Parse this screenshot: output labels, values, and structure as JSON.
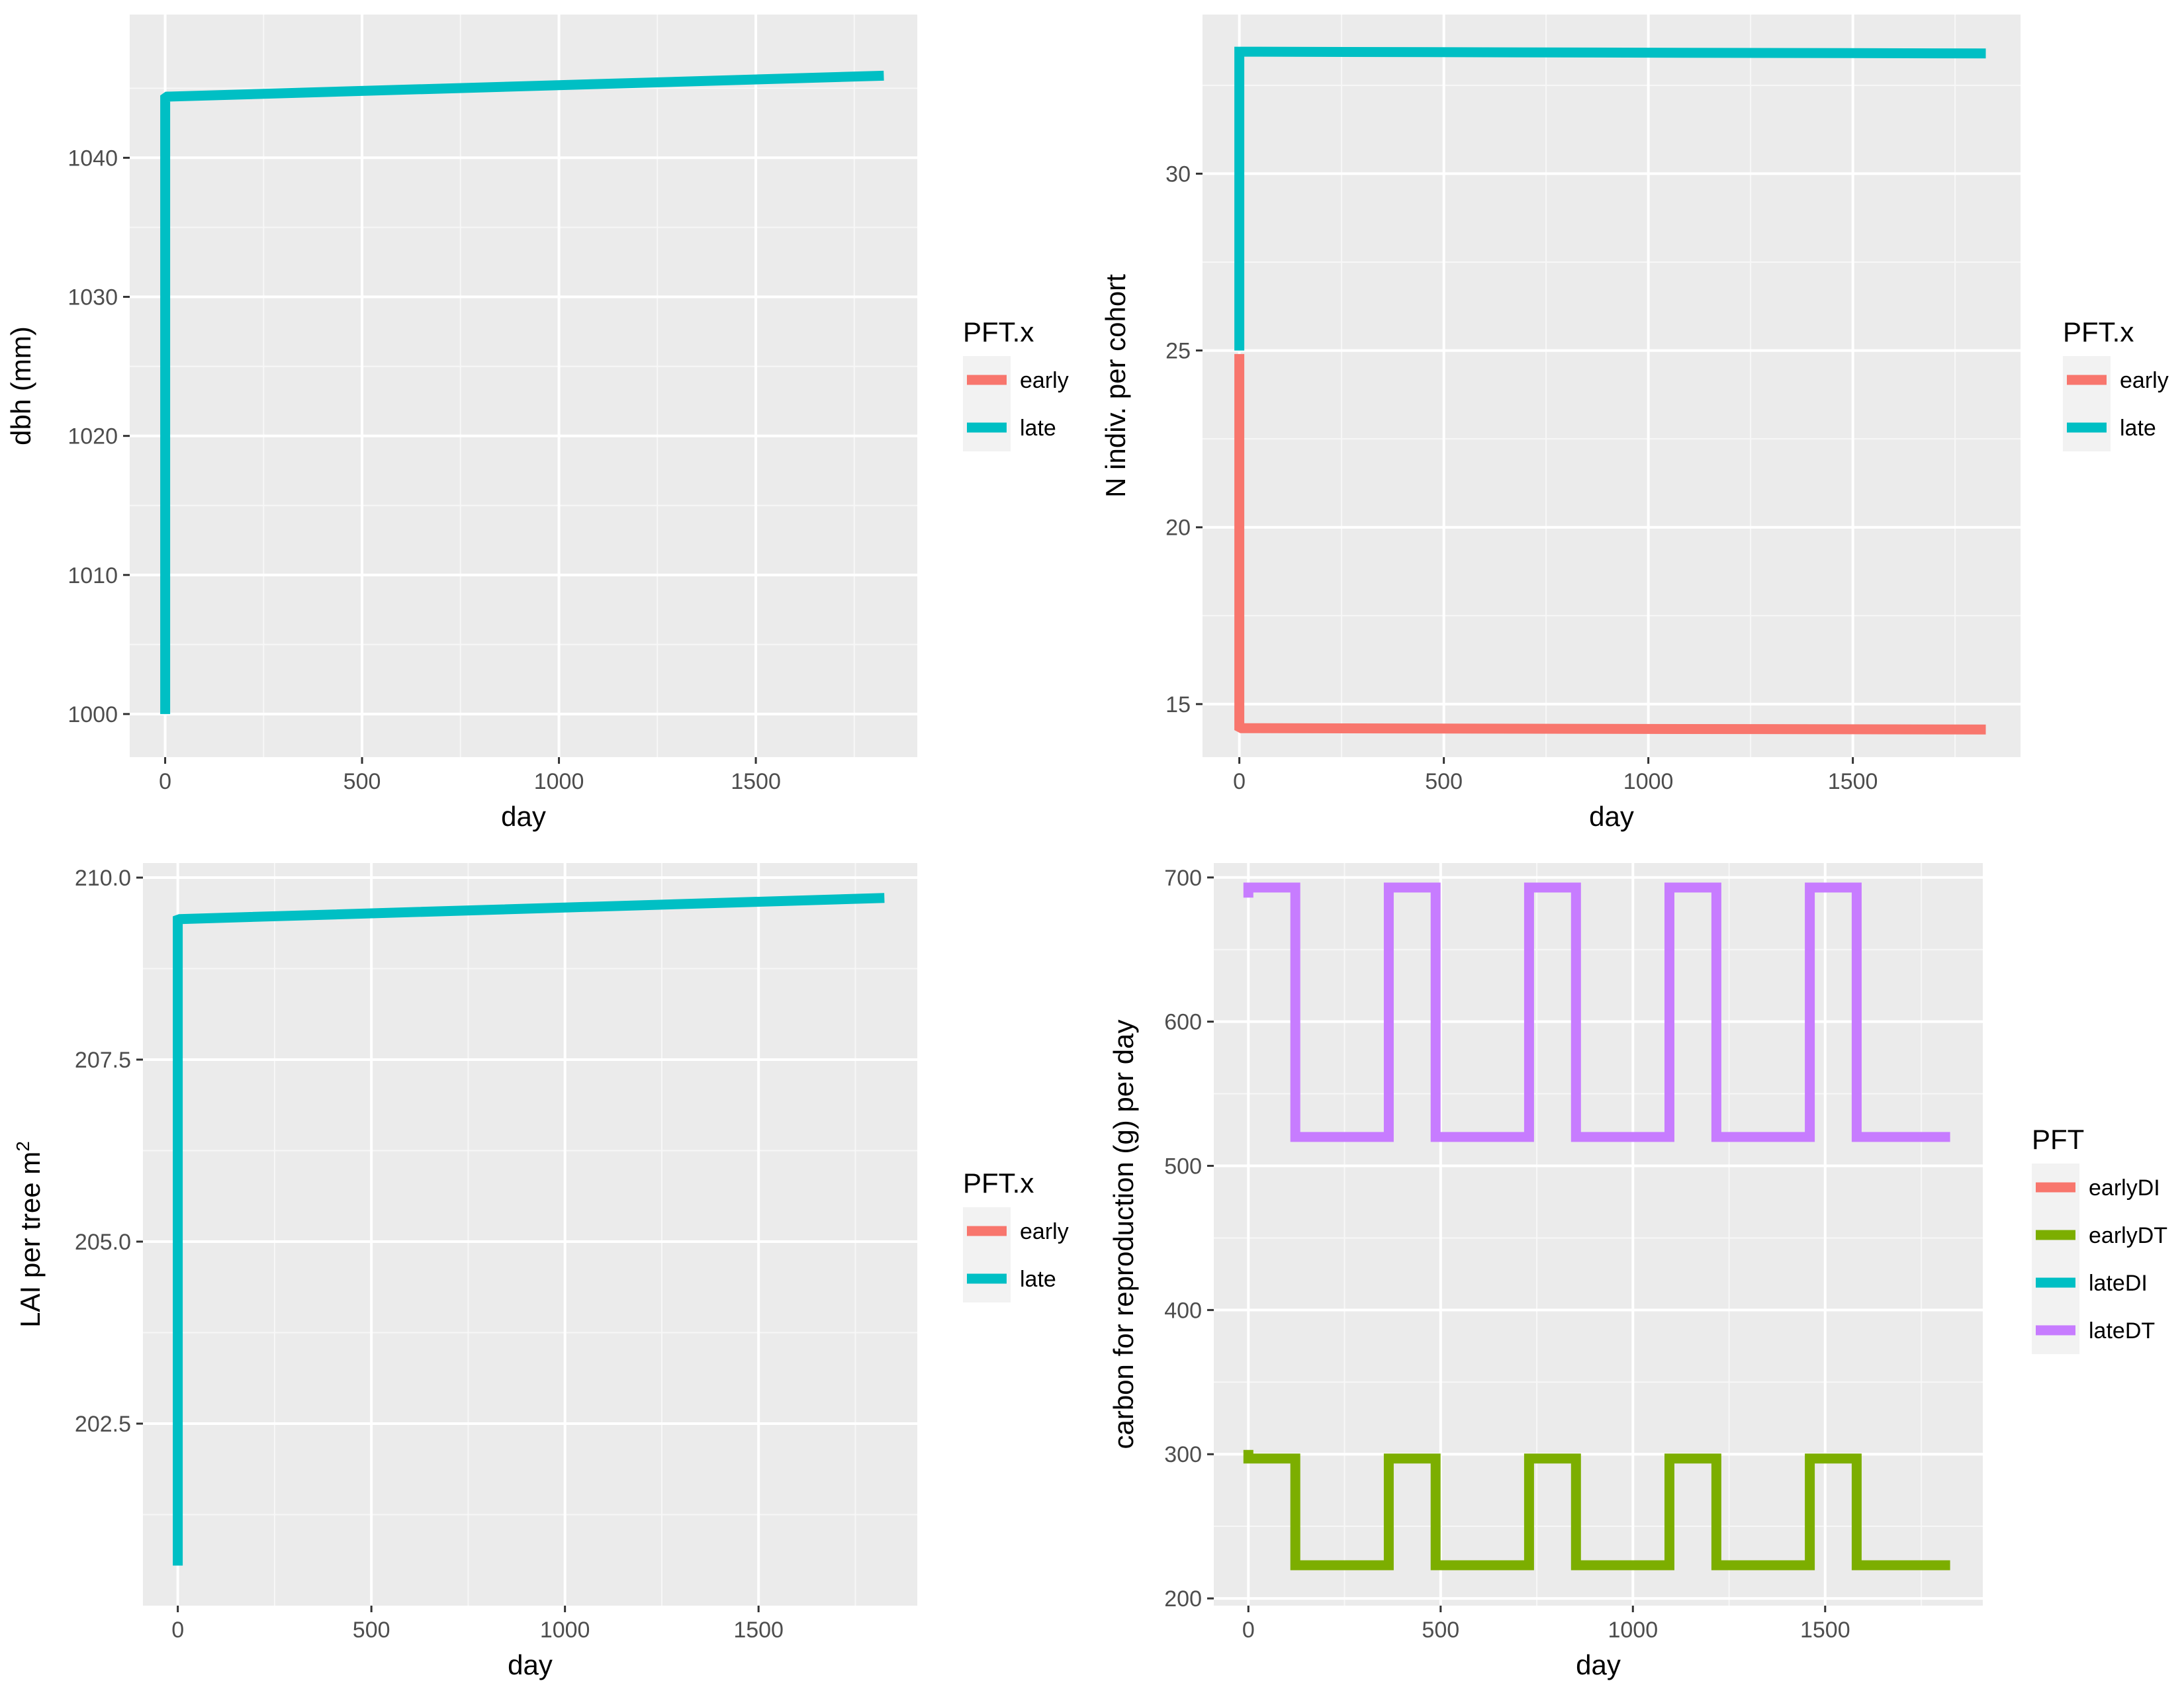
{
  "chart_data": [
    {
      "type": "line",
      "title": "",
      "xlabel": "day",
      "ylabel": "dbh (mm)",
      "ylabel_sup": "",
      "xlim": [
        -90,
        1910
      ],
      "ylim": [
        996.9,
        1050.3
      ],
      "xticks": [
        0,
        500,
        1000,
        1500
      ],
      "yticks": [
        1000,
        1010,
        1020,
        1030,
        1040
      ],
      "ytick_labels": [
        "1000",
        "1010",
        "1020",
        "1030",
        "1040"
      ],
      "legend": {
        "title": "PFT.x",
        "position": "right",
        "entries": [
          {
            "label": "early",
            "color": "#F8766D"
          },
          {
            "label": "late",
            "color": "#00BFC4"
          }
        ]
      },
      "series": [
        {
          "name": "late",
          "color": "#00BFC4",
          "x": [
            0,
            0,
            5,
            1825
          ],
          "y": [
            1000,
            1044.3,
            1044.4,
            1045.9
          ]
        }
      ]
    },
    {
      "type": "line",
      "title": "",
      "xlabel": "day",
      "ylabel": "N indiv. per cohort",
      "ylabel_sup": "",
      "xlim": [
        -90,
        1910
      ],
      "ylim": [
        13.5,
        34.5
      ],
      "xticks": [
        0,
        500,
        1000,
        1500
      ],
      "yticks": [
        15,
        20,
        25,
        30
      ],
      "ytick_labels": [
        "15",
        "20",
        "25",
        "30"
      ],
      "legend": {
        "title": "PFT.x",
        "position": "right",
        "entries": [
          {
            "label": "early",
            "color": "#F8766D"
          },
          {
            "label": "late",
            "color": "#00BFC4"
          }
        ]
      },
      "series": [
        {
          "name": "early",
          "color": "#F8766D",
          "x": [
            0,
            0,
            5,
            1825
          ],
          "y": [
            24.9,
            14.35,
            14.32,
            14.28
          ]
        },
        {
          "name": "late",
          "color": "#00BFC4",
          "x": [
            0,
            0,
            5,
            1825
          ],
          "y": [
            25,
            33.45,
            33.45,
            33.4
          ]
        }
      ]
    },
    {
      "type": "line",
      "title": "",
      "xlabel": "day",
      "ylabel": "LAI per tree m",
      "ylabel_sup": "2",
      "xlim": [
        -90,
        1910
      ],
      "ylim": [
        200.0,
        210.2
      ],
      "xticks": [
        0,
        500,
        1000,
        1500
      ],
      "yticks": [
        202.5,
        205.0,
        207.5,
        210.0
      ],
      "ytick_labels": [
        "202.5",
        "205.0",
        "207.5",
        "210.0"
      ],
      "legend": {
        "title": "PFT.x",
        "position": "right",
        "entries": [
          {
            "label": "early",
            "color": "#F8766D"
          },
          {
            "label": "late",
            "color": "#00BFC4"
          }
        ]
      },
      "series": [
        {
          "name": "late",
          "color": "#00BFC4",
          "x": [
            0,
            0,
            5,
            1825
          ],
          "y": [
            200.55,
            209.42,
            209.43,
            209.72
          ]
        }
      ]
    },
    {
      "type": "line",
      "title": "",
      "xlabel": "day",
      "ylabel": "carbon for reproduction (g) per day",
      "ylabel_sup": "",
      "xlim": [
        -90,
        1910
      ],
      "ylim": [
        195,
        710
      ],
      "xticks": [
        0,
        500,
        1000,
        1500
      ],
      "yticks": [
        200,
        300,
        400,
        500,
        600,
        700
      ],
      "ytick_labels": [
        "200",
        "300",
        "400",
        "500",
        "600",
        "700"
      ],
      "legend": {
        "title": "PFT",
        "position": "right",
        "entries": [
          {
            "label": "earlyDI",
            "color": "#F8766D"
          },
          {
            "label": "earlyDT",
            "color": "#7CAE00"
          },
          {
            "label": "lateDI",
            "color": "#00BFC4"
          },
          {
            "label": "lateDT",
            "color": "#C77CFF"
          }
        ]
      },
      "series": [
        {
          "name": "lateDT",
          "color": "#C77CFF",
          "x": [
            0,
            0,
            10,
            10,
            122,
            122,
            365,
            365,
            487,
            487,
            730,
            730,
            852,
            852,
            1095,
            1095,
            1217,
            1217,
            1460,
            1460,
            1582,
            1582,
            1825
          ],
          "y": [
            686,
            693,
            693,
            693,
            693,
            520,
            520,
            693,
            693,
            520,
            520,
            693,
            693,
            520,
            520,
            693,
            693,
            520,
            520,
            693,
            693,
            520,
            520
          ]
        },
        {
          "name": "earlyDT",
          "color": "#7CAE00",
          "x": [
            0,
            0,
            10,
            10,
            122,
            122,
            365,
            365,
            487,
            487,
            730,
            730,
            852,
            852,
            1095,
            1095,
            1217,
            1217,
            1460,
            1460,
            1582,
            1582,
            1825
          ],
          "y": [
            303,
            297,
            297,
            297,
            297,
            223,
            223,
            297,
            297,
            223,
            223,
            297,
            297,
            223,
            223,
            297,
            297,
            223,
            223,
            297,
            297,
            223,
            223
          ]
        }
      ]
    }
  ]
}
